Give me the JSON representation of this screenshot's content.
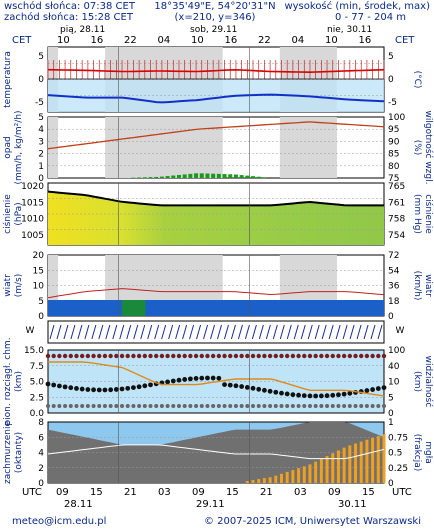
{
  "header": {
    "sunrise": "wschód słońca: 07:38 CET",
    "sunset": "zachód słońca: 15:28 CET",
    "coords": "18°35'49\"E, 54°20'31\"N",
    "grid": "(x=210, y=346)",
    "height_label": "wysokość (min, środek, max)",
    "height_values": "0 - 77 - 204 m"
  },
  "timeline": {
    "tz_left": "CET",
    "tz_right": "CET",
    "days": [
      "pią, 28.11",
      "sob, 29.11",
      "nie, 30.11"
    ],
    "hour_ticks": [
      "10",
      "16",
      "22",
      "04",
      "10",
      "16",
      "22",
      "04",
      "10",
      "16"
    ]
  },
  "panels": {
    "temperature": {
      "label": "temperatura",
      "unit_left": "(°C)",
      "unit_right": "(°C)",
      "ticks_left": [
        "5",
        "0",
        "-5"
      ],
      "ticks_right": [
        "5",
        "0",
        "-5"
      ]
    },
    "precip": {
      "label": "opad",
      "unit_left": "(mm/h, kg/m²/h)",
      "unit_right": "(%)",
      "label_right": "wilgotność wzgl.",
      "ticks_left": [
        "5",
        "4",
        "3",
        "2",
        "1",
        "0"
      ],
      "ticks_right": [
        "100",
        "95",
        "90",
        "85",
        "80",
        "75"
      ]
    },
    "pressure": {
      "label": "ciśnienie",
      "unit_left": "(hPa)",
      "unit_right": "(mm Hg)",
      "label_right": "ciśnienie",
      "ticks_left": [
        "1020",
        "1015",
        "1010",
        "1005"
      ],
      "ticks_right": [
        "765",
        "761",
        "758",
        "754"
      ]
    },
    "wind": {
      "label": "wiatr",
      "unit_left": "(m/s)",
      "unit_right": "(km/h)",
      "label_right": "wiatr",
      "ticks_left": [
        "20",
        "15",
        "10",
        "5",
        "0"
      ],
      "ticks_right": [
        "72",
        "54",
        "36",
        "18",
        "0"
      ]
    },
    "wind_dir": {
      "letters_left": "WSE N",
      "letters_right": "WSE N"
    },
    "clouds": {
      "label": "pion. rozciągł. chm.",
      "unit_left": "(km)",
      "label_right": "widzialność",
      "unit_right": "(km)",
      "ticks_left": [
        "15.0",
        "7.5",
        "5.0",
        "2.5",
        "0.0"
      ],
      "ticks_right": [
        "100",
        "40",
        "10",
        "5",
        "0"
      ]
    },
    "cloud_cover": {
      "label": "zachmurzenie",
      "unit_left": "(oktanty)",
      "label_right": "mgła",
      "unit_right": "(frakcja)",
      "ticks_left": [
        "8",
        "6",
        "4",
        "2",
        "0"
      ],
      "ticks_right": [
        "1",
        "0.75",
        "0.5",
        "0.25",
        "0"
      ]
    }
  },
  "bottom_axis": {
    "tz_left": "UTC",
    "tz_right": "UTC",
    "hour_ticks": [
      "09",
      "15",
      "21",
      "03",
      "09",
      "15",
      "21",
      "03",
      "09",
      "15"
    ],
    "days": [
      "28.11",
      "29.11",
      "30.11"
    ]
  },
  "footer": {
    "email": "meteo@icm.edu.pl",
    "copyright": "© 2007-2025 ICM, Uniwersytet Warszawski"
  },
  "chart_data": {
    "type": "line",
    "x": [
      "28.11 09",
      "28.11 15",
      "28.11 21",
      "29.11 03",
      "29.11 09",
      "29.11 15",
      "29.11 21",
      "30.11 03",
      "30.11 09",
      "30.11 15"
    ],
    "series": [
      {
        "panel": "temperature",
        "values": [
          1.5,
          1.4,
          1.2,
          1.3,
          1.2,
          1.5,
          1.2,
          1.1,
          1.3,
          1.5
        ]
      },
      {
        "panel": "temperature",
        "values": [
          -2.6,
          -3.0,
          -3.0,
          -3.8,
          -3.4,
          -2.7,
          -2.5,
          -2.8,
          -3.3,
          -3.6
        ]
      },
      {
        "panel": "precip",
        "values": [
          0.0,
          0.0,
          0.0,
          0.1,
          0.4,
          0.3,
          0.0,
          0.0,
          0.0,
          0.0
        ]
      },
      {
        "panel": "humidity",
        "values": [
          87,
          89,
          91,
          93,
          95,
          96,
          97,
          98,
          97,
          96
        ]
      },
      {
        "panel": "pressure",
        "values": [
          1018,
          1017,
          1015,
          1014,
          1014,
          1014,
          1014,
          1015,
          1014,
          1014
        ]
      },
      {
        "panel": "wind",
        "values": [
          6,
          8,
          9,
          8,
          8,
          8,
          7,
          8,
          8,
          7
        ]
      },
      {
        "panel": "visibility",
        "values": [
          90,
          90,
          80,
          50,
          50,
          60,
          60,
          40,
          40,
          30
        ]
      },
      {
        "panel": "cloud_cover",
        "values": [
          7,
          6,
          5,
          5,
          6,
          7,
          7,
          8,
          8,
          6
        ]
      },
      {
        "panel": "fog",
        "values": [
          0.0,
          0.0,
          0.0,
          0.0,
          0.0,
          0.0,
          0.1,
          0.3,
          0.6,
          0.8
        ]
      }
    ]
  }
}
